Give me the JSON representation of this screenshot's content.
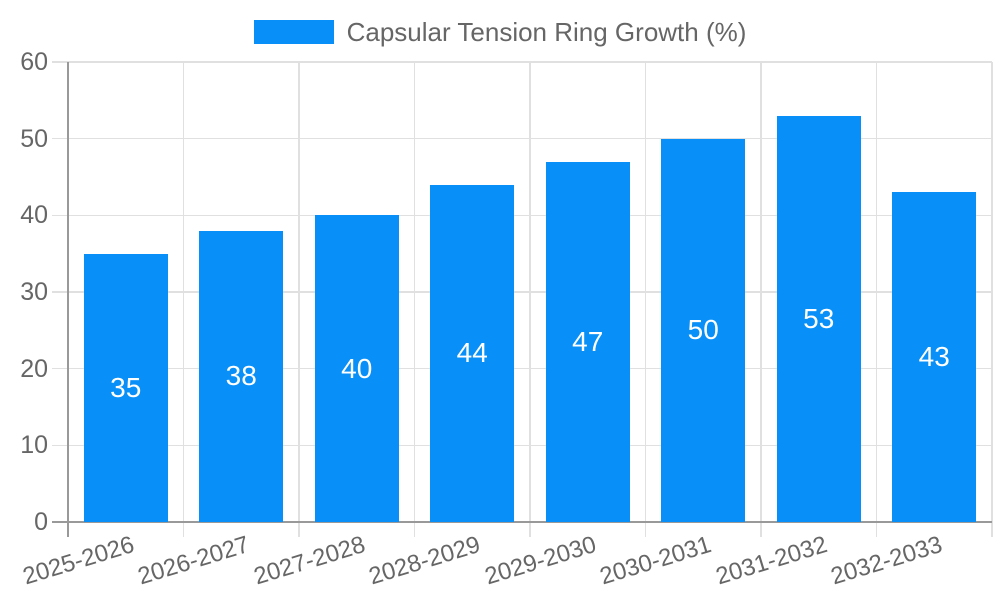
{
  "chart_data": {
    "type": "bar",
    "title": "Capsular Tension Ring Growth (%)",
    "categories": [
      "2025-2026",
      "2026-2027",
      "2027-2028",
      "2028-2029",
      "2029-2030",
      "2030-2031",
      "2031-2032",
      "2032-2033"
    ],
    "values": [
      35,
      38,
      40,
      44,
      47,
      50,
      53,
      43
    ],
    "xlabel": "",
    "ylabel": "",
    "ylim": [
      0,
      60
    ],
    "yticks": [
      0,
      10,
      20,
      30,
      40,
      50,
      60
    ],
    "grid": true,
    "legend_position": "top-center",
    "bar_color": "#0890f8",
    "value_label_color": "#ffffff",
    "tick_label_color": "#666666",
    "title_color": "#666666",
    "grid_color": "#e0e0e0",
    "axis_line_color": "#999999"
  },
  "legend": {
    "items": [
      {
        "label": "Capsular Tension Ring Growth (%)",
        "color": "#0890f8"
      }
    ]
  }
}
